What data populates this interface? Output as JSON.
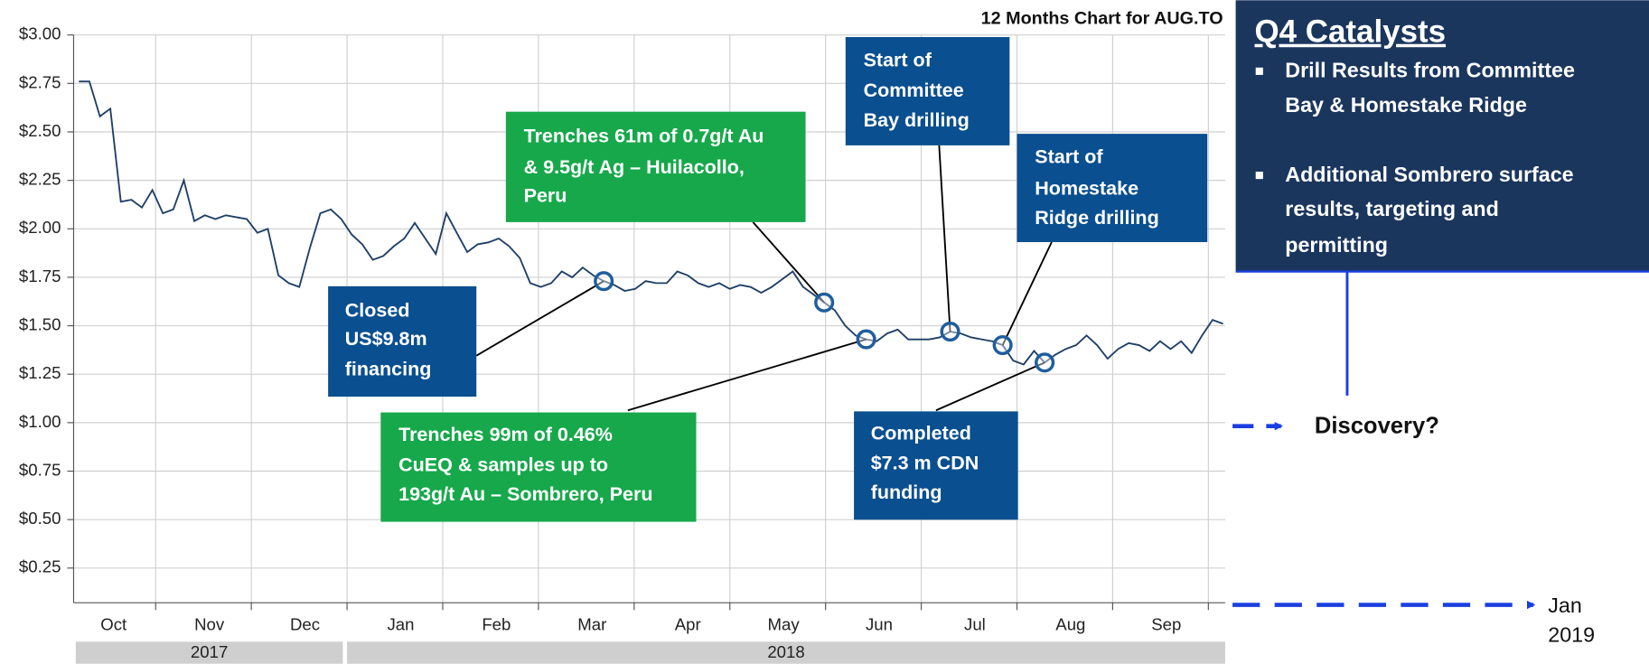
{
  "chart_data": {
    "type": "line",
    "title": "12 Months Chart for AUG.TO",
    "color": "#1f3f66",
    "ylim": [
      0.07,
      3.0
    ],
    "yticks": [
      {
        "value": 0.25,
        "label": "$0.25"
      },
      {
        "value": 0.5,
        "label": "$0.50"
      },
      {
        "value": 0.75,
        "label": "$0.75"
      },
      {
        "value": 1.0,
        "label": "$1.00"
      },
      {
        "value": 1.25,
        "label": "$1.25"
      },
      {
        "value": 1.5,
        "label": "$1.50"
      },
      {
        "value": 1.75,
        "label": "$1.75"
      },
      {
        "value": 2.0,
        "label": "$2.00"
      },
      {
        "value": 2.25,
        "label": "$2.25"
      },
      {
        "value": 2.5,
        "label": "$2.50"
      },
      {
        "value": 2.75,
        "label": "$2.75"
      },
      {
        "value": 3.0,
        "label": "$3.00"
      }
    ],
    "grid": true,
    "months": [
      "Oct",
      "Nov",
      "Dec",
      "Jan",
      "Feb",
      "Mar",
      "Apr",
      "May",
      "Jun",
      "Jul",
      "Aug",
      "Sep"
    ],
    "years": [
      "2017",
      "2018"
    ],
    "values": [
      2.76,
      2.76,
      2.58,
      2.62,
      2.14,
      2.15,
      2.11,
      2.2,
      2.08,
      2.1,
      2.25,
      2.04,
      2.07,
      2.05,
      2.07,
      2.06,
      2.05,
      1.98,
      2.0,
      1.76,
      1.72,
      1.7,
      1.9,
      2.08,
      2.1,
      2.05,
      1.97,
      1.92,
      1.84,
      1.86,
      1.91,
      1.95,
      2.03,
      1.95,
      1.87,
      2.08,
      1.98,
      1.88,
      1.92,
      1.93,
      1.95,
      1.91,
      1.85,
      1.72,
      1.7,
      1.72,
      1.78,
      1.75,
      1.8,
      1.76,
      1.73,
      1.71,
      1.68,
      1.69,
      1.73,
      1.72,
      1.72,
      1.78,
      1.76,
      1.72,
      1.7,
      1.72,
      1.69,
      1.71,
      1.7,
      1.67,
      1.7,
      1.74,
      1.78,
      1.7,
      1.66,
      1.62,
      1.58,
      1.5,
      1.45,
      1.43,
      1.42,
      1.46,
      1.48,
      1.43,
      1.43,
      1.43,
      1.44,
      1.47,
      1.46,
      1.44,
      1.43,
      1.42,
      1.4,
      1.32,
      1.3,
      1.37,
      1.31,
      1.35,
      1.38,
      1.4,
      1.45,
      1.4,
      1.33,
      1.38,
      1.41,
      1.4,
      1.37,
      1.42,
      1.38,
      1.42,
      1.36,
      1.45,
      1.53,
      1.51
    ],
    "annotations": [
      {
        "color": "#17a84b",
        "lines": [
          "Trenches 61m of 0.7g/t Au",
          "& 9.5g/t Ag –  Huilacollo,",
          "Peru"
        ]
      },
      {
        "color": "#0a4f8f",
        "lines": [
          "Start of",
          "Committee",
          "Bay drilling"
        ]
      },
      {
        "color": "#0a4f8f",
        "lines": [
          "Start of",
          "Homestake",
          "Ridge drilling"
        ]
      },
      {
        "color": "#0a4f8f",
        "lines": [
          "Closed",
          "US$9.8m",
          "financing"
        ]
      },
      {
        "color": "#17a84b",
        "lines": [
          "Trenches 99m of 0.46%",
          "CuEQ & samples up to",
          "193g/t Au – Sombrero, Peru"
        ]
      },
      {
        "color": "#0a4f8f",
        "lines": [
          "Completed",
          "$7.3 m CDN",
          "funding"
        ]
      }
    ]
  },
  "panel": {
    "title": "Q4 Catalysts",
    "bullets": [
      [
        "Drill Results from Committee",
        "Bay & Homestake Ridge"
      ],
      [
        "Additional Sombrero surface",
        "results, targeting and",
        "permitting"
      ]
    ]
  },
  "discovery": "Discovery?",
  "timeline_end": [
    "Jan",
    "2019"
  ]
}
